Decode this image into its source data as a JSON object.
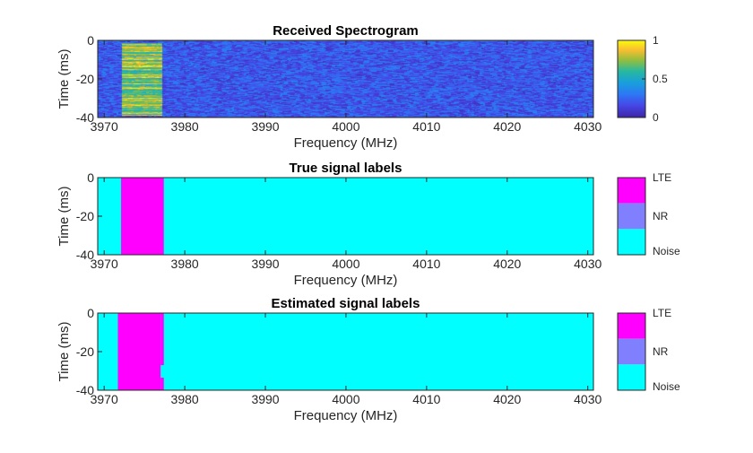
{
  "chart_data": [
    {
      "type": "heatmap",
      "title": "Received Spectrogram",
      "xlabel": "Frequency (MHz)",
      "ylabel": "Time (ms)",
      "xlim": [
        3969.2,
        4030.7
      ],
      "ylim": [
        -40,
        0
      ],
      "xticks": [
        "3970",
        "3980",
        "3990",
        "4000",
        "4010",
        "4020",
        "4030"
      ],
      "yticks": [
        "0",
        "-20",
        "-40"
      ],
      "colorbar": {
        "ticks": [
          "0",
          "0.5",
          "1"
        ],
        "range": [
          0,
          1
        ],
        "colormap": "parula"
      },
      "signal_band_mhz": [
        3972.2,
        3977.1
      ],
      "background_level": 0.2,
      "signal_level": 0.75
    },
    {
      "type": "heatmap",
      "title": "True signal labels",
      "xlabel": "Frequency (MHz)",
      "ylabel": "Time (ms)",
      "xlim": [
        3969.2,
        4030.7
      ],
      "ylim": [
        -40,
        0
      ],
      "xticks": [
        "3970",
        "3980",
        "3990",
        "4000",
        "4010",
        "4020",
        "4030"
      ],
      "yticks": [
        "0",
        "-20",
        "-40"
      ],
      "classes": [
        {
          "name": "LTE",
          "color": "#ff00ff"
        },
        {
          "name": "NR",
          "color": "#8080ff"
        },
        {
          "name": "Noise",
          "color": "#00ffff"
        }
      ],
      "regions": [
        {
          "label": "LTE",
          "freq": [
            3972.1,
            3977.4
          ],
          "time": [
            -40,
            0
          ]
        }
      ]
    },
    {
      "type": "heatmap",
      "title": "Estimated signal labels",
      "xlabel": "Frequency (MHz)",
      "ylabel": "Time (ms)",
      "xlim": [
        3969.2,
        4030.7
      ],
      "ylim": [
        -40,
        0
      ],
      "xticks": [
        "3970",
        "3980",
        "3990",
        "4000",
        "4010",
        "4020",
        "4030"
      ],
      "yticks": [
        "0",
        "-20",
        "-40"
      ],
      "classes": [
        {
          "name": "LTE",
          "color": "#ff00ff"
        },
        {
          "name": "NR",
          "color": "#8080ff"
        },
        {
          "name": "Noise",
          "color": "#00ffff"
        }
      ],
      "regions": [
        {
          "label": "LTE",
          "freq": [
            3971.7,
            3977.0
          ],
          "time": [
            -40,
            0
          ]
        },
        {
          "label": "LTE",
          "freq": [
            3977.0,
            3977.4
          ],
          "time": [
            -27,
            0
          ]
        },
        {
          "label": "LTE",
          "freq": [
            3977.0,
            3977.4
          ],
          "time": [
            -40,
            -33.5
          ]
        }
      ]
    }
  ]
}
